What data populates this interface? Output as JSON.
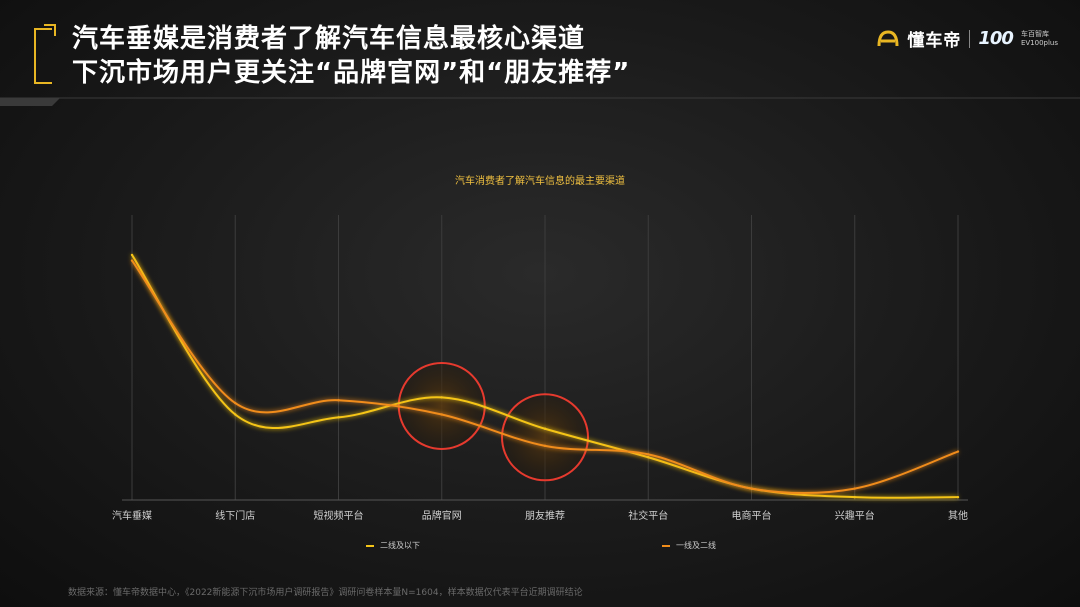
{
  "header": {
    "title_line1": "汽车垂媒是消费者了解汽车信息最核心渠道",
    "title_line2": "下沉市场用户更关注“品牌官网”和“朋友推荐”"
  },
  "brand": {
    "name": "懂车帝",
    "logo_number": "100",
    "logo_subtitle_line1": "车百智库",
    "logo_subtitle_line2": "EV100plus"
  },
  "colors": {
    "accent": "#e8b623",
    "series_tier2_below": "#f5c518",
    "series_tier1_tier2": "#f08c1a",
    "highlight_circle": "#e63a2e"
  },
  "chart_data": {
    "type": "line",
    "title": "汽车消费者了解汽车信息的最主要渠道",
    "categories": [
      "汽车垂媒",
      "线下门店",
      "短视频平台",
      "品牌官网",
      "朋友推荐",
      "社交平台",
      "电商平台",
      "兴趣平台",
      "其他"
    ],
    "series": [
      {
        "name": "二线及以下",
        "values": [
          86,
          30,
          29,
          36,
          25,
          15,
          4,
          1,
          1
        ]
      },
      {
        "name": "一线及二线",
        "values": [
          84,
          34,
          35,
          30,
          19,
          16,
          4,
          4,
          17
        ]
      }
    ],
    "ylim": [
      0,
      100
    ],
    "grid": "vertical",
    "legend_position": "bottom",
    "highlighted_categories": [
      "品牌官网",
      "朋友推荐"
    ]
  },
  "footer": {
    "source": "数据来源：懂车帝数据中心，《2022新能源下沉市场用户调研报告》调研问卷样本量N=1604，样本数据仅代表平台近期调研结论"
  }
}
